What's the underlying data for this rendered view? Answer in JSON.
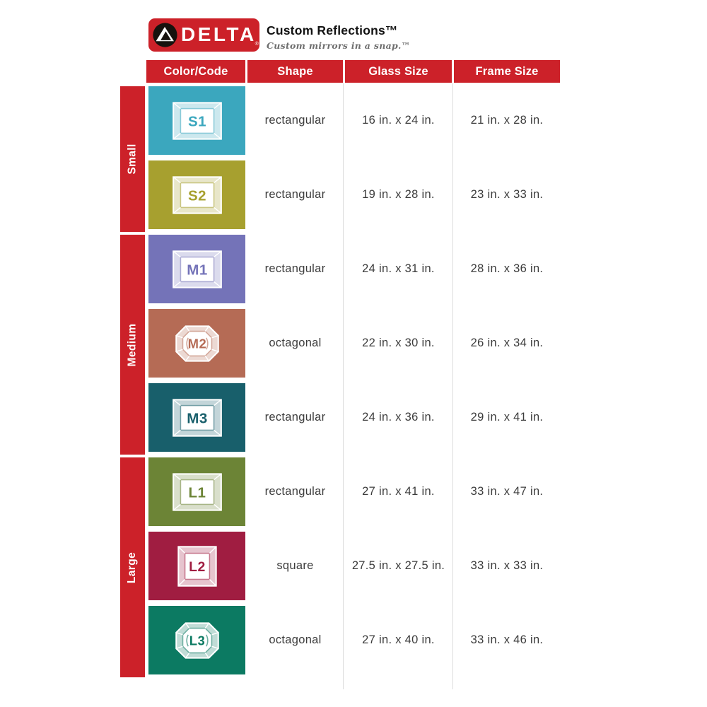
{
  "brand": {
    "logo_text": "DELTA",
    "logo_reg": "®",
    "logo_bg": "#CC2129",
    "logo_icon": "delta-triangle-icon",
    "title": "Custom Reflections™",
    "tagline": "Custom mirrors in a snap.™"
  },
  "table": {
    "accent_red": "#CC2129",
    "text_color": "#3c3c3c",
    "divider_color": "#dcdcdc",
    "columns": [
      "Color/Code",
      "Shape",
      "Glass Size",
      "Frame Size"
    ],
    "groups": [
      {
        "label": "Small",
        "rows": 2
      },
      {
        "label": "Medium",
        "rows": 3
      },
      {
        "label": "Large",
        "rows": 3
      }
    ],
    "rows": [
      {
        "group": "Small",
        "code": "S1",
        "color": "#3BA7BE",
        "icon": "mirror-frame-rectangular-icon",
        "shape": "rectangular",
        "glass": "16 in. x 24 in.",
        "frame": "21 in. x 28 in."
      },
      {
        "group": "Small",
        "code": "S2",
        "color": "#A7A02F",
        "icon": "mirror-frame-rectangular-icon",
        "shape": "rectangular",
        "glass": "19 in. x 28 in.",
        "frame": "23 in. x 33 in."
      },
      {
        "group": "Medium",
        "code": "M1",
        "color": "#7473B8",
        "icon": "mirror-frame-rectangular-icon",
        "shape": "rectangular",
        "glass": "24 in. x 31 in.",
        "frame": "28 in. x 36 in."
      },
      {
        "group": "Medium",
        "code": "M2",
        "color": "#B56B55",
        "icon": "mirror-frame-octagonal-icon",
        "shape": "octagonal",
        "glass": "22 in. x 30 in.",
        "frame": "26 in. x 34 in."
      },
      {
        "group": "Medium",
        "code": "M3",
        "color": "#185F6B",
        "icon": "mirror-frame-rectangular-icon",
        "shape": "rectangular",
        "glass": "24 in. x 36 in.",
        "frame": "29 in. x 41 in."
      },
      {
        "group": "Large",
        "code": "L1",
        "color": "#6C8436",
        "icon": "mirror-frame-rectangular-icon",
        "shape": "rectangular",
        "glass": "27 in. x 41 in.",
        "frame": "33 in. x 47 in."
      },
      {
        "group": "Large",
        "code": "L2",
        "color": "#A01D41",
        "icon": "mirror-frame-square-icon",
        "shape": "square",
        "glass": "27.5 in. x 27.5 in.",
        "frame": "33 in. x 33 in."
      },
      {
        "group": "Large",
        "code": "L3",
        "color": "#0C7A62",
        "icon": "mirror-frame-octagonal-icon",
        "shape": "octagonal",
        "glass": "27 in. x 40 in.",
        "frame": "33 in. x 46 in."
      }
    ]
  },
  "chart_data": {
    "type": "table",
    "columns": [
      "Group",
      "Color/Code",
      "Shape",
      "Glass Size",
      "Frame Size"
    ],
    "rows": [
      [
        "Small",
        "S1",
        "rectangular",
        "16 in. x 24 in.",
        "21 in. x 28 in."
      ],
      [
        "Small",
        "S2",
        "rectangular",
        "19 in. x 28 in.",
        "23 in. x 33 in."
      ],
      [
        "Medium",
        "M1",
        "rectangular",
        "24 in. x 31 in.",
        "28 in. x 36 in."
      ],
      [
        "Medium",
        "M2",
        "octagonal",
        "22 in. x 30 in.",
        "26 in. x 34 in."
      ],
      [
        "Medium",
        "M3",
        "rectangular",
        "24 in. x 36 in.",
        "29 in. x 41 in."
      ],
      [
        "Large",
        "L1",
        "rectangular",
        "27 in. x 41 in.",
        "33 in. x 47 in."
      ],
      [
        "Large",
        "L2",
        "square",
        "27.5 in. x 27.5 in.",
        "33 in. x 33 in."
      ],
      [
        "Large",
        "L3",
        "octagonal",
        "27 in. x 40 in.",
        "33 in. x 46 in."
      ]
    ]
  }
}
